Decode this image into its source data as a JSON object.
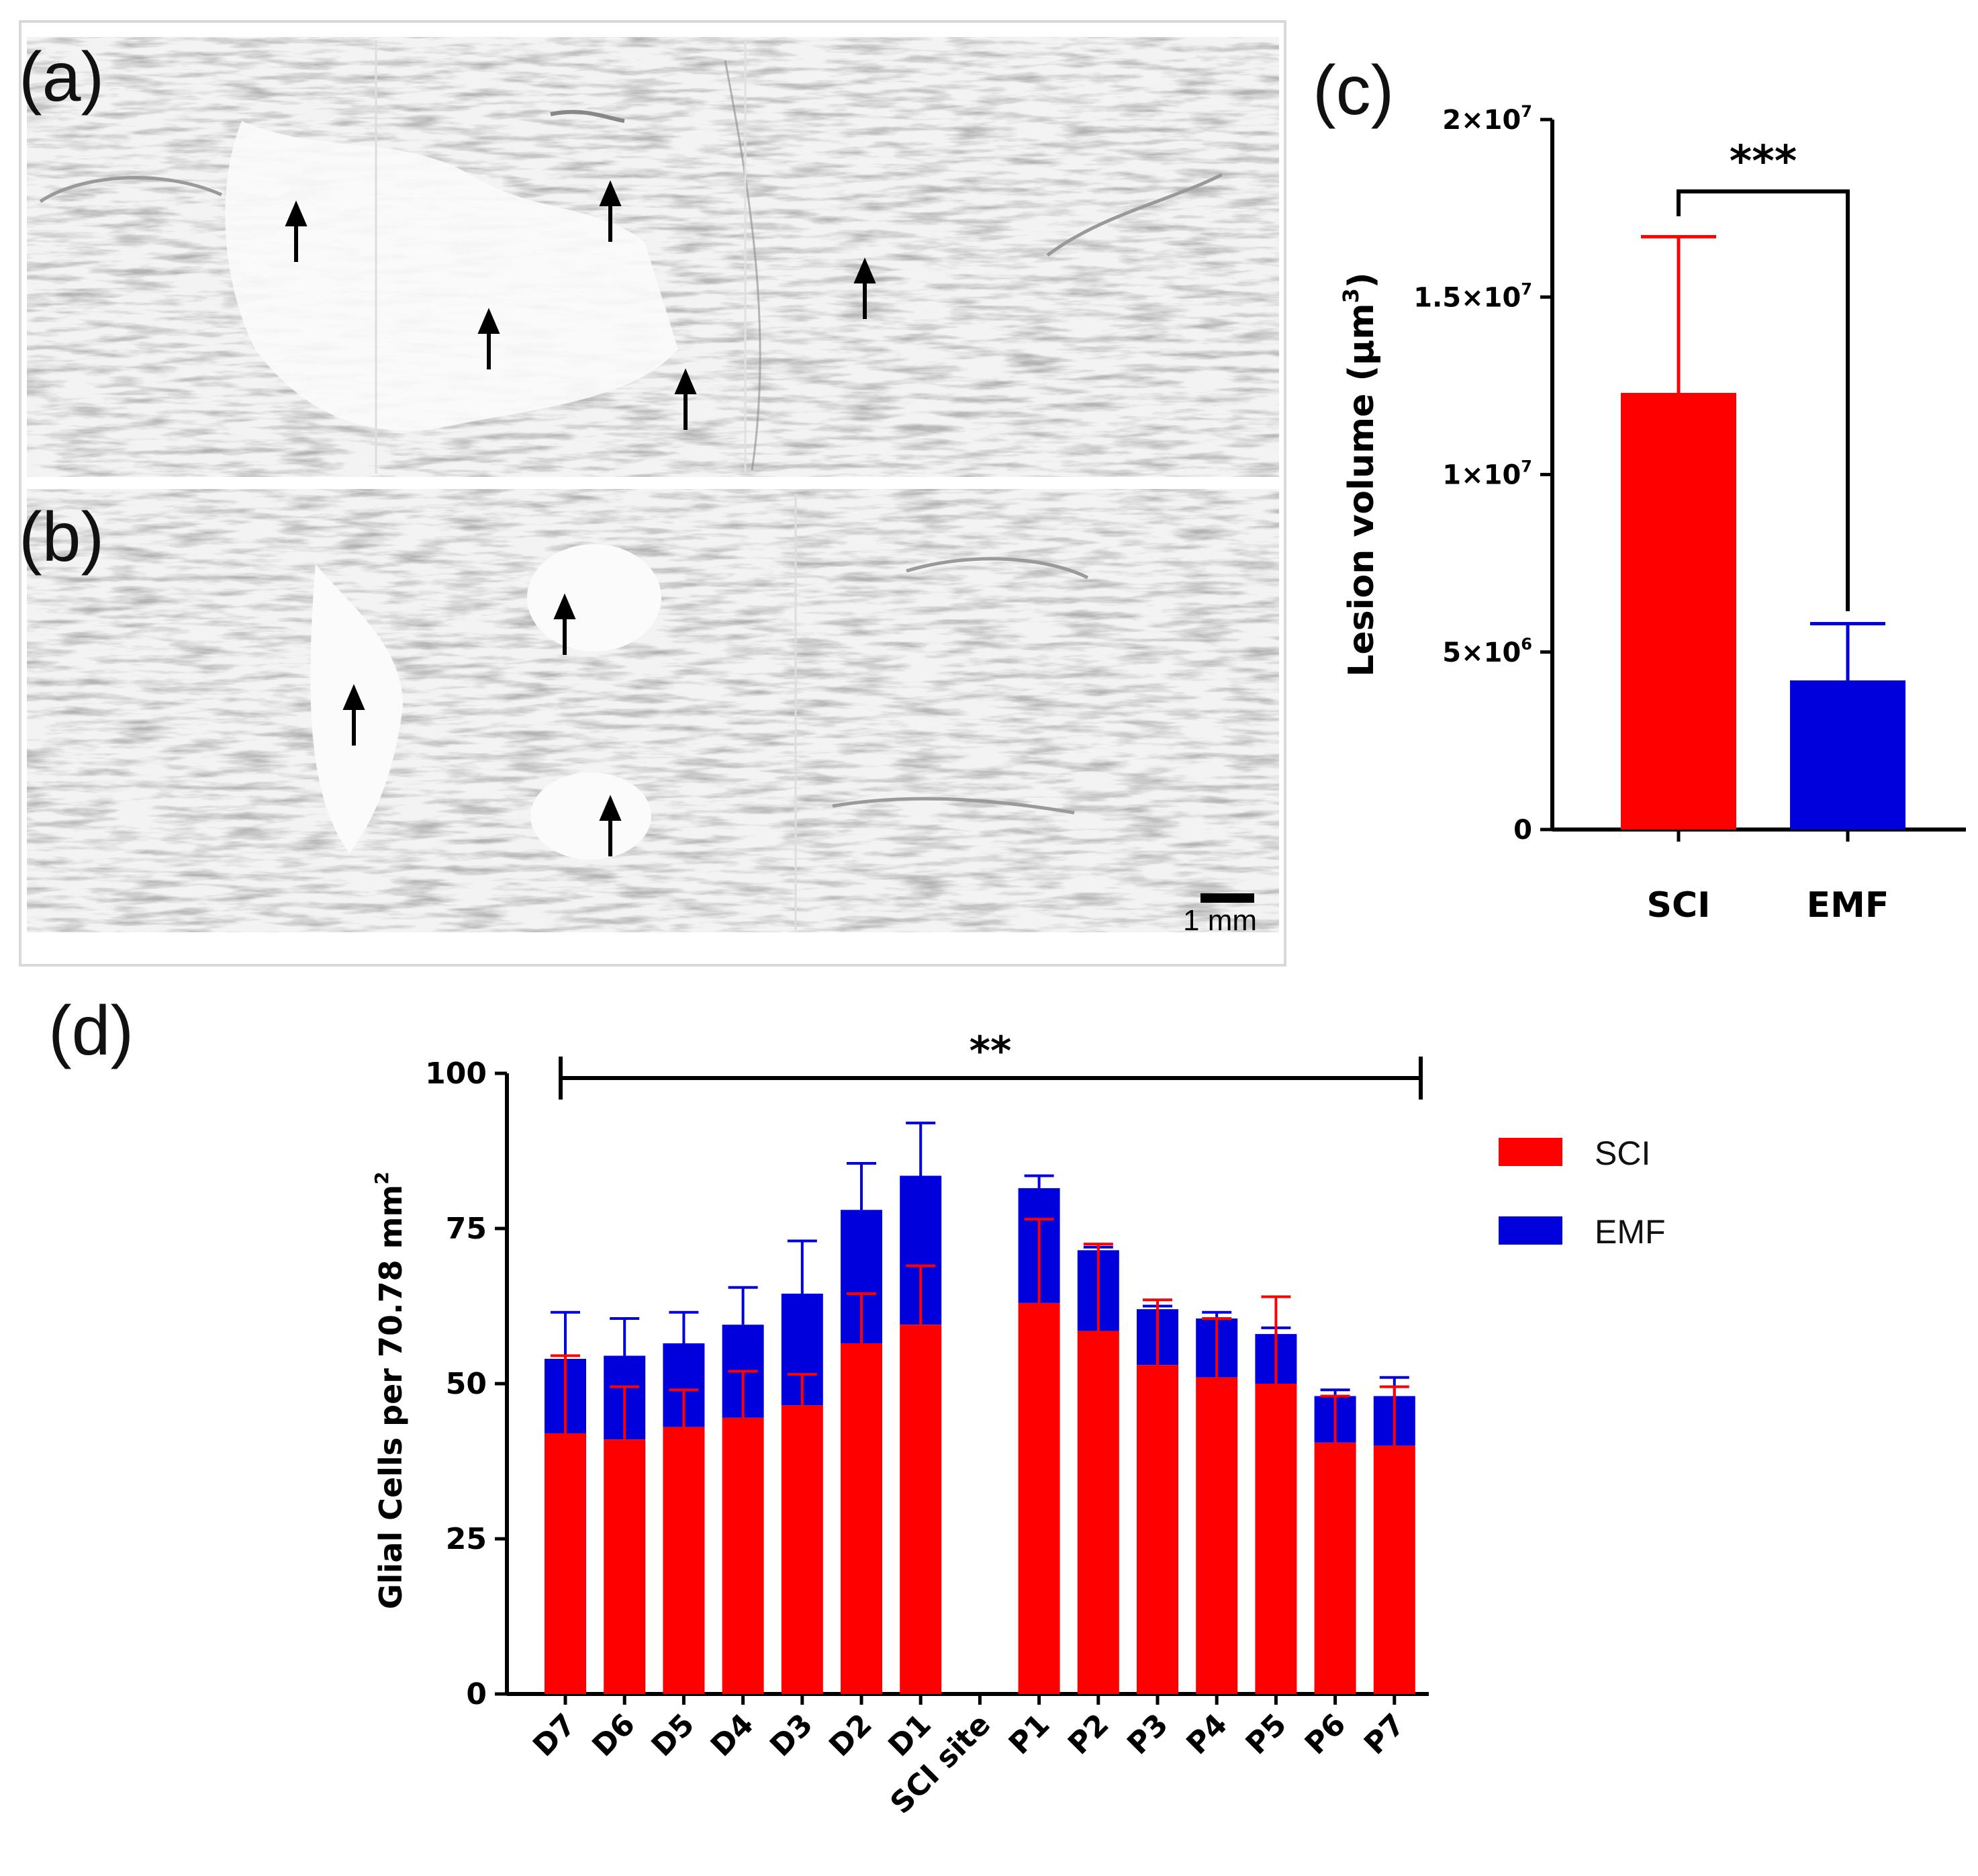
{
  "colors": {
    "sci": "#ff0000",
    "emf": "#0000dd",
    "axis": "#000000",
    "tissue_bg": "#f4f4f4",
    "tissue_ink": "#7a7a7a"
  },
  "panels": {
    "a": {
      "label": "(a)"
    },
    "b": {
      "label": "(b)",
      "scale_bar": "1 mm"
    },
    "c": {
      "label": "(c)"
    },
    "d": {
      "label": "(d)"
    }
  },
  "chart_data": [
    {
      "id": "c",
      "type": "bar",
      "ylabel": "Lesion volume (µm",
      "ylabel_sup": "3",
      "ylabel_close": ")",
      "ylim": [
        0,
        20000000
      ],
      "yticks": [
        {
          "value": 0,
          "base": "0",
          "exp": ""
        },
        {
          "value": 5000000,
          "base": "5×10",
          "exp": "6"
        },
        {
          "value": 10000000,
          "base": "1×10",
          "exp": "7"
        },
        {
          "value": 15000000,
          "base": "1.5×10",
          "exp": "7"
        },
        {
          "value": 20000000,
          "base": "2×10",
          "exp": "7"
        }
      ],
      "categories": [
        "SCI",
        "EMF"
      ],
      "values": [
        12300000,
        4200000
      ],
      "errors": [
        4400000,
        1600000
      ],
      "significance": "***"
    },
    {
      "id": "d",
      "type": "bar",
      "stacked": true,
      "ylabel": "Glial Cells per 70.78 mm",
      "ylabel_sup": "2",
      "ylim": [
        0,
        100
      ],
      "yticks": [
        0,
        25,
        50,
        75,
        100
      ],
      "categories": [
        "D7",
        "D6",
        "D5",
        "D4",
        "D3",
        "D2",
        "D1",
        "SCI site",
        "P1",
        "P2",
        "P3",
        "P4",
        "P5",
        "P6",
        "P7"
      ],
      "series": [
        {
          "name": "SCI",
          "values": [
            42,
            41,
            43,
            44.5,
            46.5,
            56.5,
            59.5,
            0,
            63,
            58.5,
            53,
            51,
            50,
            40.5,
            40
          ],
          "error_tops": [
            54.5,
            49.5,
            49,
            52,
            51.5,
            64.5,
            69,
            0,
            76.5,
            72.5,
            63.5,
            60.5,
            64,
            48,
            49.5
          ]
        },
        {
          "name": "EMF",
          "totals": [
            54,
            54.5,
            56.5,
            59.5,
            64.5,
            78,
            83.5,
            0,
            81.5,
            71.5,
            62,
            60.5,
            58,
            48,
            48
          ],
          "error_tops": [
            61.5,
            60.5,
            61.5,
            65.5,
            73,
            85.5,
            92,
            0,
            83.5,
            72,
            62.5,
            61.5,
            59,
            49,
            51
          ]
        }
      ],
      "significance": "**",
      "legend": [
        "SCI",
        "EMF"
      ]
    }
  ]
}
